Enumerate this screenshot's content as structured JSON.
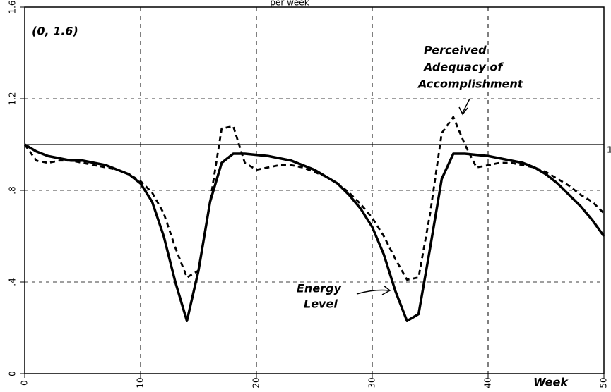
{
  "chart_data": {
    "type": "line",
    "title": "per week",
    "x": [
      0,
      1,
      2,
      3,
      4,
      5,
      6,
      7,
      8,
      9,
      10,
      11,
      12,
      13,
      14,
      15,
      16,
      17,
      18,
      19,
      20,
      21,
      22,
      23,
      24,
      25,
      26,
      27,
      28,
      29,
      30,
      31,
      32,
      33,
      34,
      35,
      36,
      37,
      38,
      39,
      40,
      41,
      42,
      43,
      44,
      45,
      46,
      47,
      48,
      49,
      50
    ],
    "series": [
      {
        "color": "#000000",
        "style": "solid",
        "values": [
          1.0,
          0.97,
          0.95,
          0.94,
          0.93,
          0.93,
          0.92,
          0.91,
          0.89,
          0.87,
          0.83,
          0.75,
          0.6,
          0.4,
          0.23,
          0.45,
          0.75,
          0.92,
          0.96,
          0.96,
          0.955,
          0.95,
          0.94,
          0.93,
          0.91,
          0.89,
          0.86,
          0.83,
          0.78,
          0.72,
          0.64,
          0.52,
          0.36,
          0.23,
          0.26,
          0.55,
          0.85,
          0.96,
          0.96,
          0.955,
          0.95,
          0.94,
          0.93,
          0.92,
          0.9,
          0.87,
          0.83,
          0.78,
          0.73,
          0.67,
          0.6
        ]
      },
      {
        "color": "#000000",
        "style": "dashed",
        "values": [
          1.0,
          0.93,
          0.92,
          0.93,
          0.93,
          0.92,
          0.91,
          0.9,
          0.89,
          0.87,
          0.84,
          0.79,
          0.7,
          0.55,
          0.42,
          0.45,
          0.75,
          1.07,
          1.08,
          0.92,
          0.89,
          0.9,
          0.91,
          0.91,
          0.9,
          0.88,
          0.86,
          0.83,
          0.79,
          0.74,
          0.68,
          0.6,
          0.5,
          0.41,
          0.42,
          0.7,
          1.05,
          1.12,
          1.0,
          0.9,
          0.91,
          0.92,
          0.92,
          0.91,
          0.9,
          0.88,
          0.85,
          0.82,
          0.78,
          0.75,
          0.7
        ]
      }
    ],
    "xlim": [
      0,
      50
    ],
    "xticks": [
      0,
      10,
      20,
      30,
      40,
      50
    ],
    "ylim": [
      0,
      1.6
    ],
    "yticks": [
      0,
      {
        "value": 0.4,
        "label": ".4"
      },
      {
        "value": 0.8,
        "label": ".8"
      },
      1.2,
      1.6
    ],
    "reference_line": 1,
    "grid": true,
    "annotations": [
      "(0, 1.6)",
      "Perceived",
      "Adequacy of",
      "Accomplishment",
      "Energy",
      "Level",
      "Week"
    ]
  }
}
